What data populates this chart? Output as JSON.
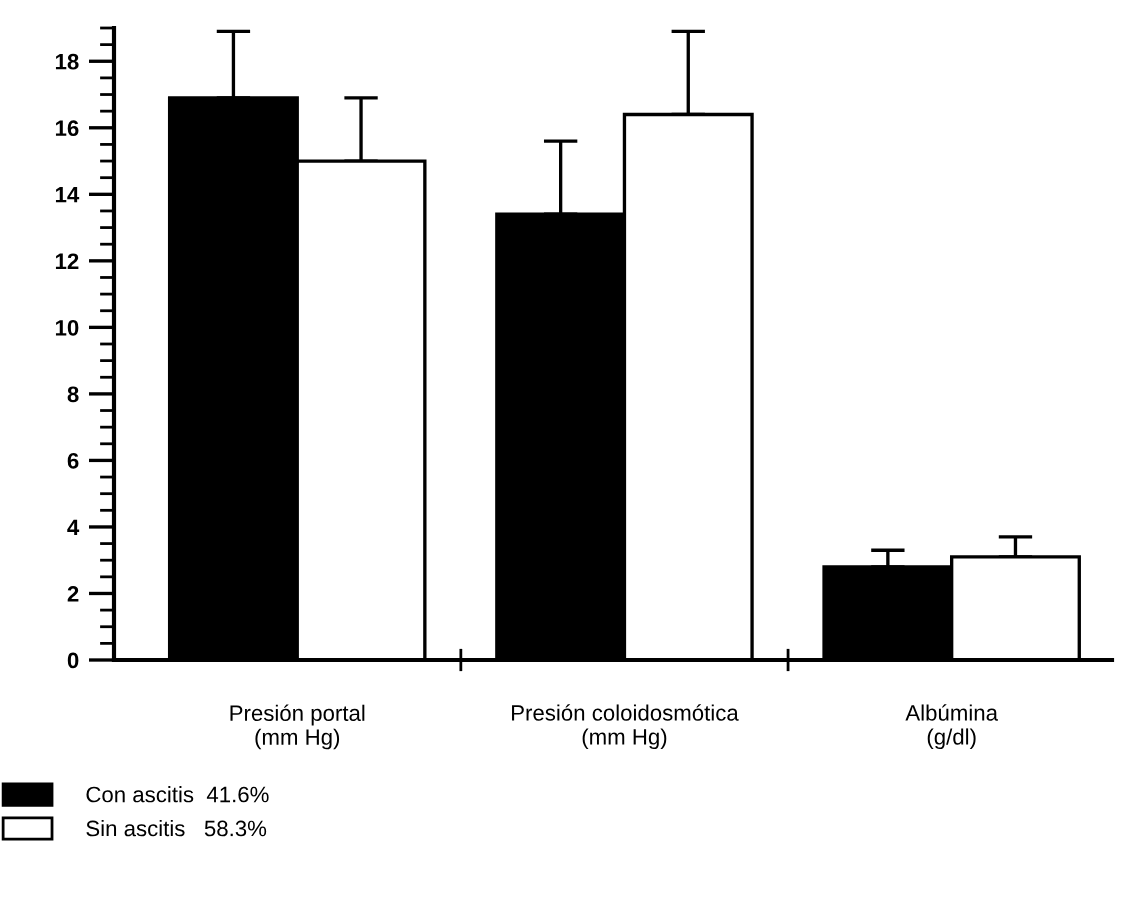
{
  "chart_data": {
    "type": "bar",
    "categories": [
      "Presión portal\n(mm Hg)",
      "Presión coloidosmótica\n(mm Hg)",
      "Albúmina\n(g/dl)"
    ],
    "series": [
      {
        "name": "Con ascitis  41.6%",
        "color": "#000000",
        "values": [
          16.9,
          13.4,
          2.8
        ],
        "errors": [
          [
            16.9,
            18.9
          ],
          [
            13.4,
            15.6
          ],
          [
            2.8,
            3.3
          ]
        ]
      },
      {
        "name": "Sin ascitis   58.3%",
        "color": "#ffffff",
        "values": [
          15.0,
          16.4,
          3.1
        ],
        "errors": [
          [
            15.0,
            16.9
          ],
          [
            16.4,
            18.9
          ],
          [
            3.1,
            3.7
          ]
        ]
      }
    ],
    "ylim": [
      0,
      19
    ],
    "yticks": [
      0,
      2,
      4,
      6,
      8,
      10,
      12,
      14,
      16,
      18
    ],
    "grid": false,
    "legend": "bottom left"
  }
}
